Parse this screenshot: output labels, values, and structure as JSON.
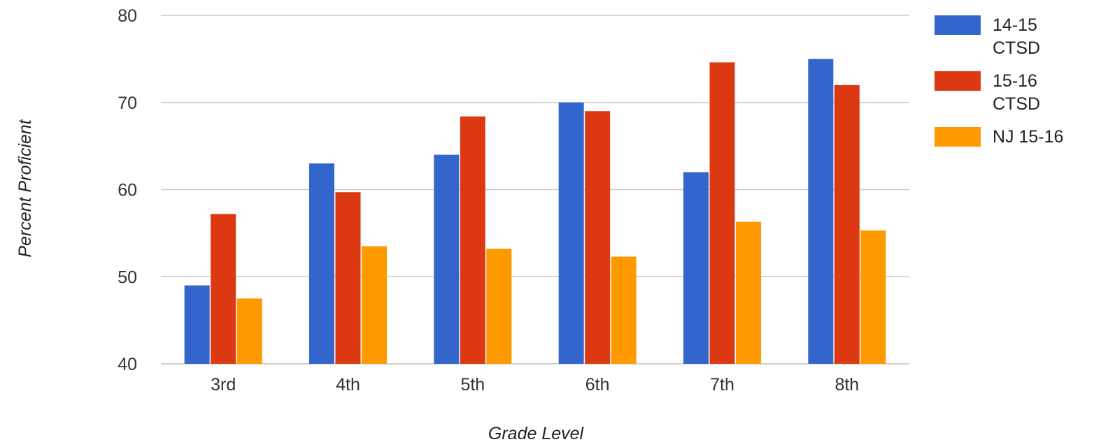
{
  "chart_data": {
    "type": "bar",
    "xlabel": "Grade Level",
    "ylabel": "Percent Proficient",
    "ylim": [
      40,
      80
    ],
    "yticks": [
      40,
      50,
      60,
      70,
      80
    ],
    "grid": true,
    "legend_position": "right",
    "categories": [
      "3rd",
      "4th",
      "5th",
      "6th",
      "7th",
      "8th"
    ],
    "series": [
      {
        "name": "14-15 CTSD",
        "legend_lines": [
          "14-15",
          "CTSD"
        ],
        "color": "#3366cc",
        "values": [
          49,
          63,
          64,
          70,
          62,
          75
        ]
      },
      {
        "name": "15-16 CTSD",
        "legend_lines": [
          "15-16",
          "CTSD"
        ],
        "color": "#dc3912",
        "values": [
          57.2,
          59.7,
          68.4,
          69,
          74.6,
          72
        ]
      },
      {
        "name": "NJ 15-16",
        "legend_lines": [
          "NJ 15-16"
        ],
        "color": "#ff9900",
        "values": [
          47.5,
          53.5,
          53.2,
          52.3,
          56.3,
          55.3
        ]
      }
    ]
  }
}
